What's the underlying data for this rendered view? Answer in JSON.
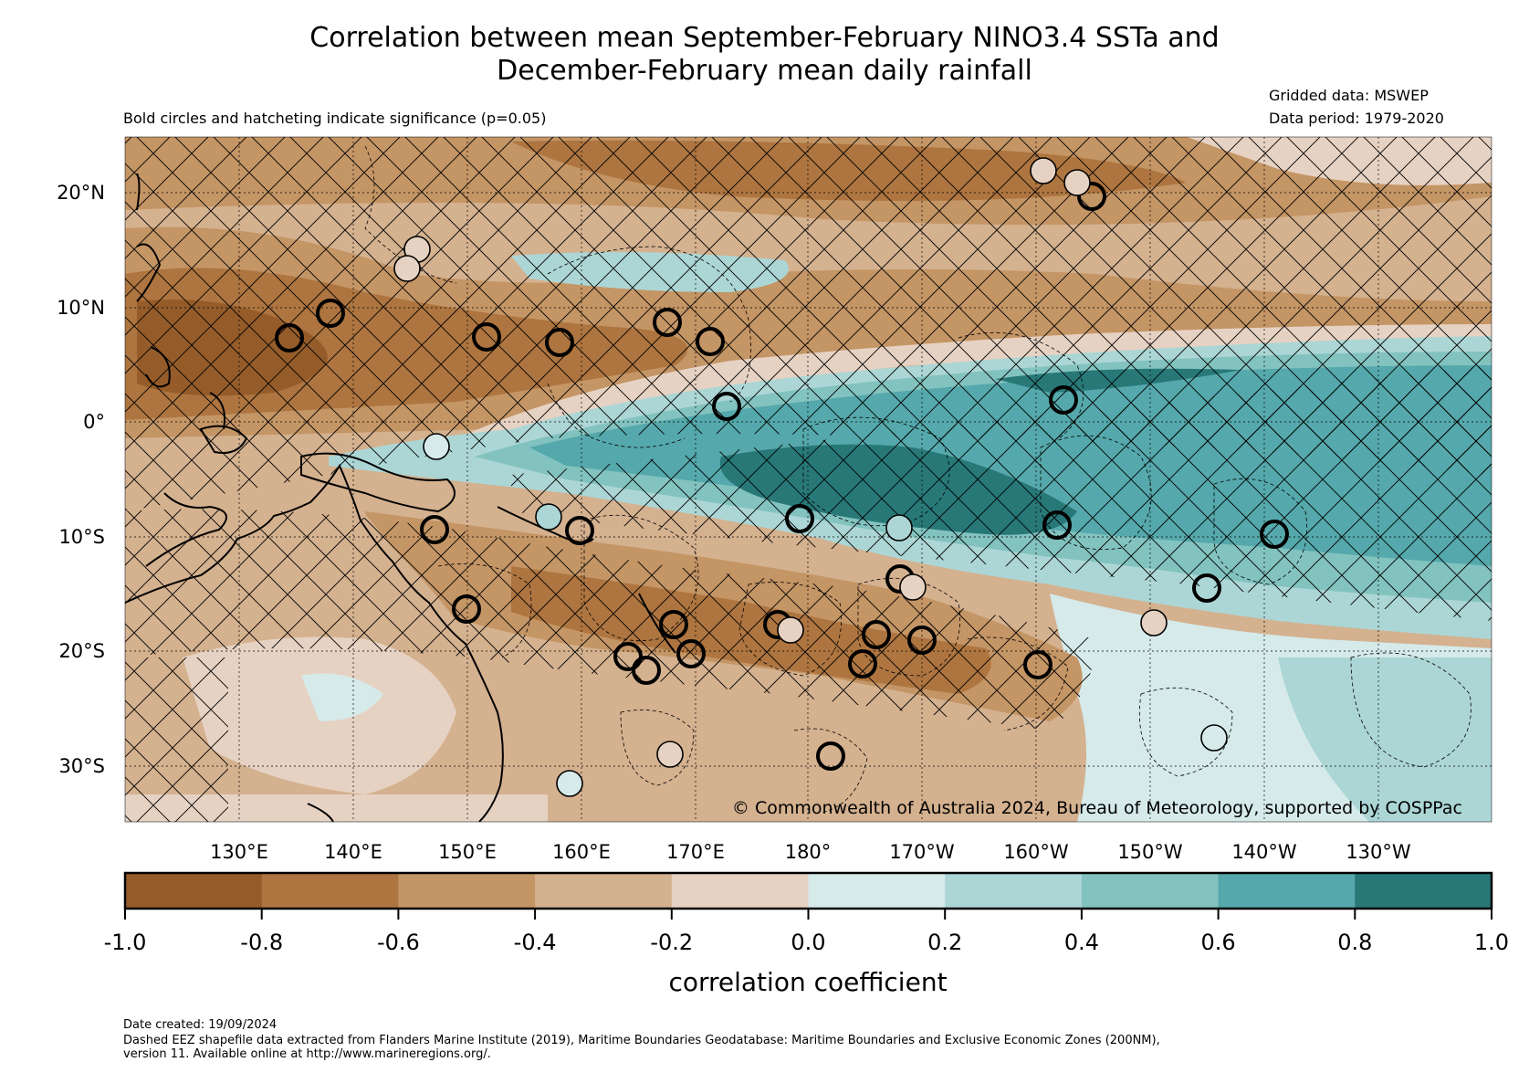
{
  "title_line1": "Correlation between mean September-February NINO3.4 SSTa and",
  "title_line2": "December-February mean daily rainfall",
  "subtitle": "Bold circles and hatcheting indicate significance (p=0.05)",
  "gridded_data": "Gridded data: MSWEP",
  "data_period": "Data period: 1979-2020",
  "copyright": "© Commonwealth of Australia 2024, Bureau of Meteorology, supported by COSPPac",
  "lat_labels": [
    "20°N",
    "10°N",
    "0°",
    "10°S",
    "20°S",
    "30°S"
  ],
  "lon_labels": [
    "130°E",
    "140°E",
    "150°E",
    "160°E",
    "170°E",
    "180°",
    "170°W",
    "160°W",
    "150°W",
    "140°W",
    "130°W"
  ],
  "colorbar": {
    "label": "correlation coefficient",
    "ticks": [
      "-1.0",
      "-0.8",
      "-0.6",
      "-0.4",
      "-0.2",
      "0.0",
      "0.2",
      "0.4",
      "0.6",
      "0.8",
      "1.0"
    ],
    "colors": [
      "#955c2a",
      "#ae7540",
      "#c49565",
      "#d4b18f",
      "#e6d2c3",
      "#d6eaea",
      "#acd6d5",
      "#82c2bf",
      "#55a8ab",
      "#287878"
    ]
  },
  "footer": {
    "date_created": "Date created: 19/09/2024",
    "eez_line1": "Dashed EEZ shapefile data extracted from Flanders Marine Institute (2019), Maritime Boundaries Geodatabase: Maritime Boundaries and Exclusive Economic Zones (200NM),",
    "eez_line2": "version 11. Available online at http://www.marineregions.org/."
  }
}
